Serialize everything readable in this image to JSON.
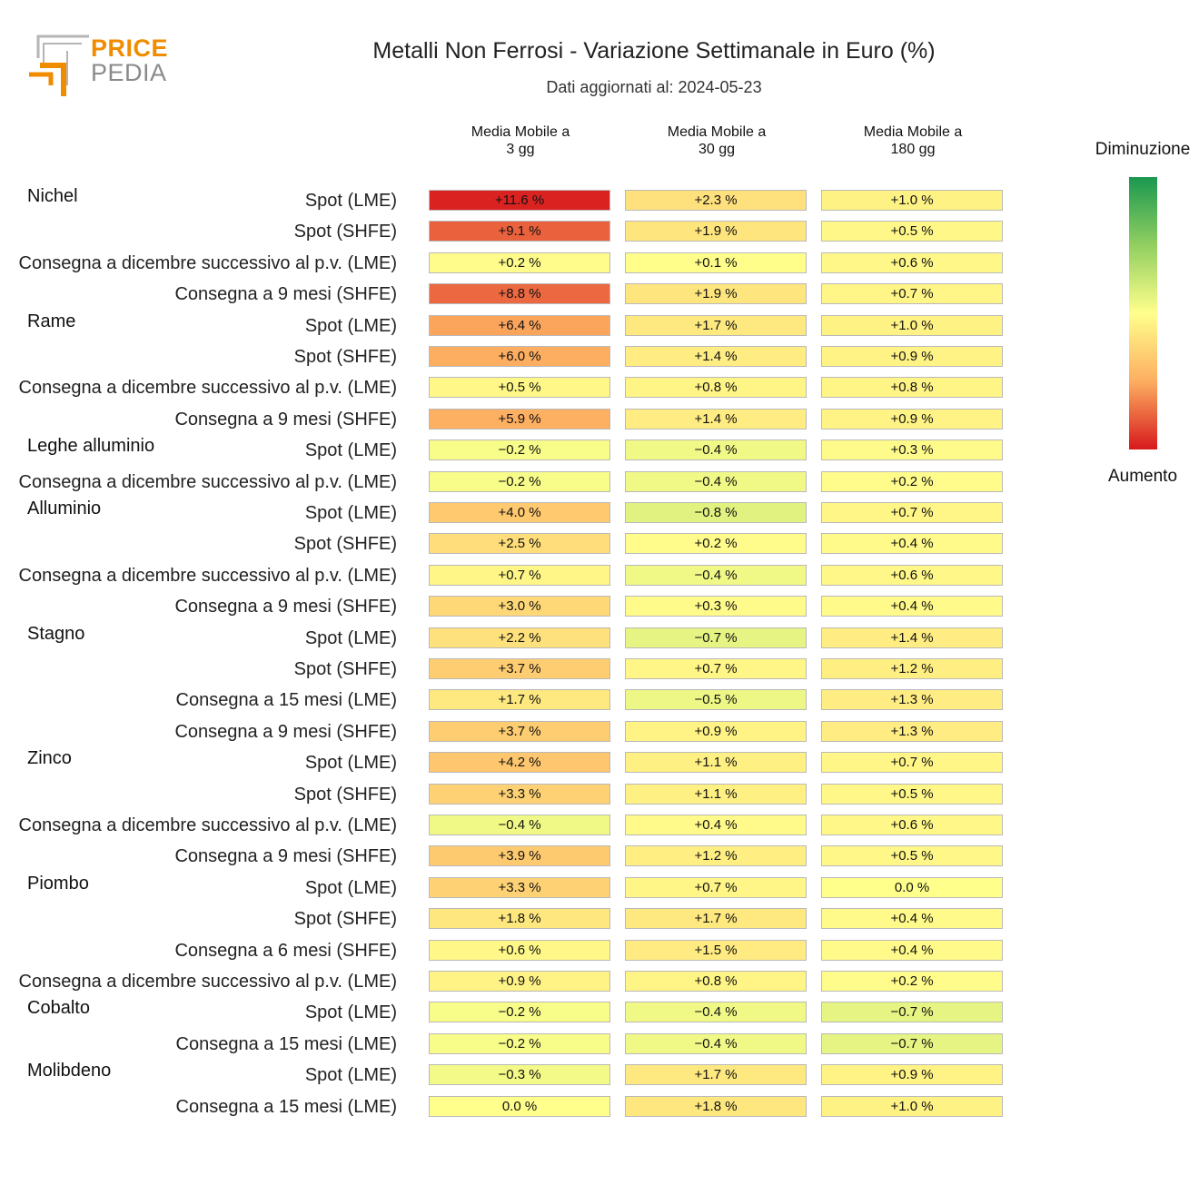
{
  "logo": {
    "line1": "PRICE",
    "line2": "PEDIA"
  },
  "title": "Metalli Non Ferrosi - Variazione Settimanale in Euro (%)",
  "subtitle": "Dati aggiornati al: 2024-05-23",
  "legend": {
    "top": "Diminuzione",
    "bottom": "Aumento",
    "colors": [
      "#1a9850",
      "#91cf60",
      "#ffff8c",
      "#fdae61",
      "#d7191c"
    ]
  },
  "chart_data": {
    "type": "table",
    "title": "Metalli Non Ferrosi - Variazione Settimanale in Euro (%)",
    "columns": [
      "Media Mobile a\n3 gg",
      "Media Mobile a\n30 gg",
      "Media Mobile a\n180 gg"
    ],
    "groups": [
      {
        "name": "Nichel",
        "rows": [
          {
            "label": "Spot (LME)",
            "values": [
              "+11.6 %",
              "+2.3 %",
              "+1.0 %"
            ]
          },
          {
            "label": "Spot (SHFE)",
            "values": [
              "+9.1 %",
              "+1.9 %",
              "+0.5 %"
            ]
          },
          {
            "label": "Consegna a dicembre successivo al p.v. (LME)",
            "values": [
              "+0.2 %",
              "+0.1 %",
              "+0.6 %"
            ]
          },
          {
            "label": "Consegna a 9 mesi (SHFE)",
            "values": [
              "+8.8 %",
              "+1.9 %",
              "+0.7 %"
            ]
          }
        ]
      },
      {
        "name": "Rame",
        "rows": [
          {
            "label": "Spot (LME)",
            "values": [
              "+6.4 %",
              "+1.7 %",
              "+1.0 %"
            ]
          },
          {
            "label": "Spot (SHFE)",
            "values": [
              "+6.0 %",
              "+1.4 %",
              "+0.9 %"
            ]
          },
          {
            "label": "Consegna a dicembre successivo al p.v. (LME)",
            "values": [
              "+0.5 %",
              "+0.8 %",
              "+0.8 %"
            ]
          },
          {
            "label": "Consegna a 9 mesi (SHFE)",
            "values": [
              "+5.9 %",
              "+1.4 %",
              "+0.9 %"
            ]
          }
        ]
      },
      {
        "name": "Leghe alluminio",
        "rows": [
          {
            "label": "Spot (LME)",
            "values": [
              "−0.2 %",
              "−0.4 %",
              "+0.3 %"
            ]
          },
          {
            "label": "Consegna a dicembre successivo al p.v. (LME)",
            "values": [
              "−0.2 %",
              "−0.4 %",
              "+0.2 %"
            ]
          }
        ]
      },
      {
        "name": "Alluminio",
        "rows": [
          {
            "label": "Spot (LME)",
            "values": [
              "+4.0 %",
              "−0.8 %",
              "+0.7 %"
            ]
          },
          {
            "label": "Spot (SHFE)",
            "values": [
              "+2.5 %",
              "+0.2 %",
              "+0.4 %"
            ]
          },
          {
            "label": "Consegna a dicembre successivo al p.v. (LME)",
            "values": [
              "+0.7 %",
              "−0.4 %",
              "+0.6 %"
            ]
          },
          {
            "label": "Consegna a 9 mesi (SHFE)",
            "values": [
              "+3.0 %",
              "+0.3 %",
              "+0.4 %"
            ]
          }
        ]
      },
      {
        "name": "Stagno",
        "rows": [
          {
            "label": "Spot (LME)",
            "values": [
              "+2.2 %",
              "−0.7 %",
              "+1.4 %"
            ]
          },
          {
            "label": "Spot (SHFE)",
            "values": [
              "+3.7 %",
              "+0.7 %",
              "+1.2 %"
            ]
          },
          {
            "label": "Consegna a 15 mesi (LME)",
            "values": [
              "+1.7 %",
              "−0.5 %",
              "+1.3 %"
            ]
          },
          {
            "label": "Consegna a 9 mesi (SHFE)",
            "values": [
              "+3.7 %",
              "+0.9 %",
              "+1.3 %"
            ]
          }
        ]
      },
      {
        "name": "Zinco",
        "rows": [
          {
            "label": "Spot (LME)",
            "values": [
              "+4.2 %",
              "+1.1 %",
              "+0.7 %"
            ]
          },
          {
            "label": "Spot (SHFE)",
            "values": [
              "+3.3 %",
              "+1.1 %",
              "+0.5 %"
            ]
          },
          {
            "label": "Consegna a dicembre successivo al p.v. (LME)",
            "values": [
              "−0.4 %",
              "+0.4 %",
              "+0.6 %"
            ]
          },
          {
            "label": "Consegna a 9 mesi (SHFE)",
            "values": [
              "+3.9 %",
              "+1.2 %",
              "+0.5 %"
            ]
          }
        ]
      },
      {
        "name": "Piombo",
        "rows": [
          {
            "label": "Spot (LME)",
            "values": [
              "+3.3 %",
              "+0.7 %",
              "0.0 %"
            ]
          },
          {
            "label": "Spot (SHFE)",
            "values": [
              "+1.8 %",
              "+1.7 %",
              "+0.4 %"
            ]
          },
          {
            "label": "Consegna a 6 mesi (SHFE)",
            "values": [
              "+0.6 %",
              "+1.5 %",
              "+0.4 %"
            ]
          },
          {
            "label": "Consegna a dicembre successivo al p.v. (LME)",
            "values": [
              "+0.9 %",
              "+0.8 %",
              "+0.2 %"
            ]
          }
        ]
      },
      {
        "name": "Cobalto",
        "rows": [
          {
            "label": "Spot (LME)",
            "values": [
              "−0.2 %",
              "−0.4 %",
              "−0.7 %"
            ]
          },
          {
            "label": "Consegna a 15 mesi (LME)",
            "values": [
              "−0.2 %",
              "−0.4 %",
              "−0.7 %"
            ]
          }
        ]
      },
      {
        "name": "Molibdeno",
        "rows": [
          {
            "label": "Spot (LME)",
            "values": [
              "−0.3 %",
              "+1.7 %",
              "+0.9 %"
            ]
          },
          {
            "label": "Consegna a 15 mesi (LME)",
            "values": [
              "0.0 %",
              "+1.8 %",
              "+1.0 %"
            ]
          }
        ]
      }
    ]
  }
}
